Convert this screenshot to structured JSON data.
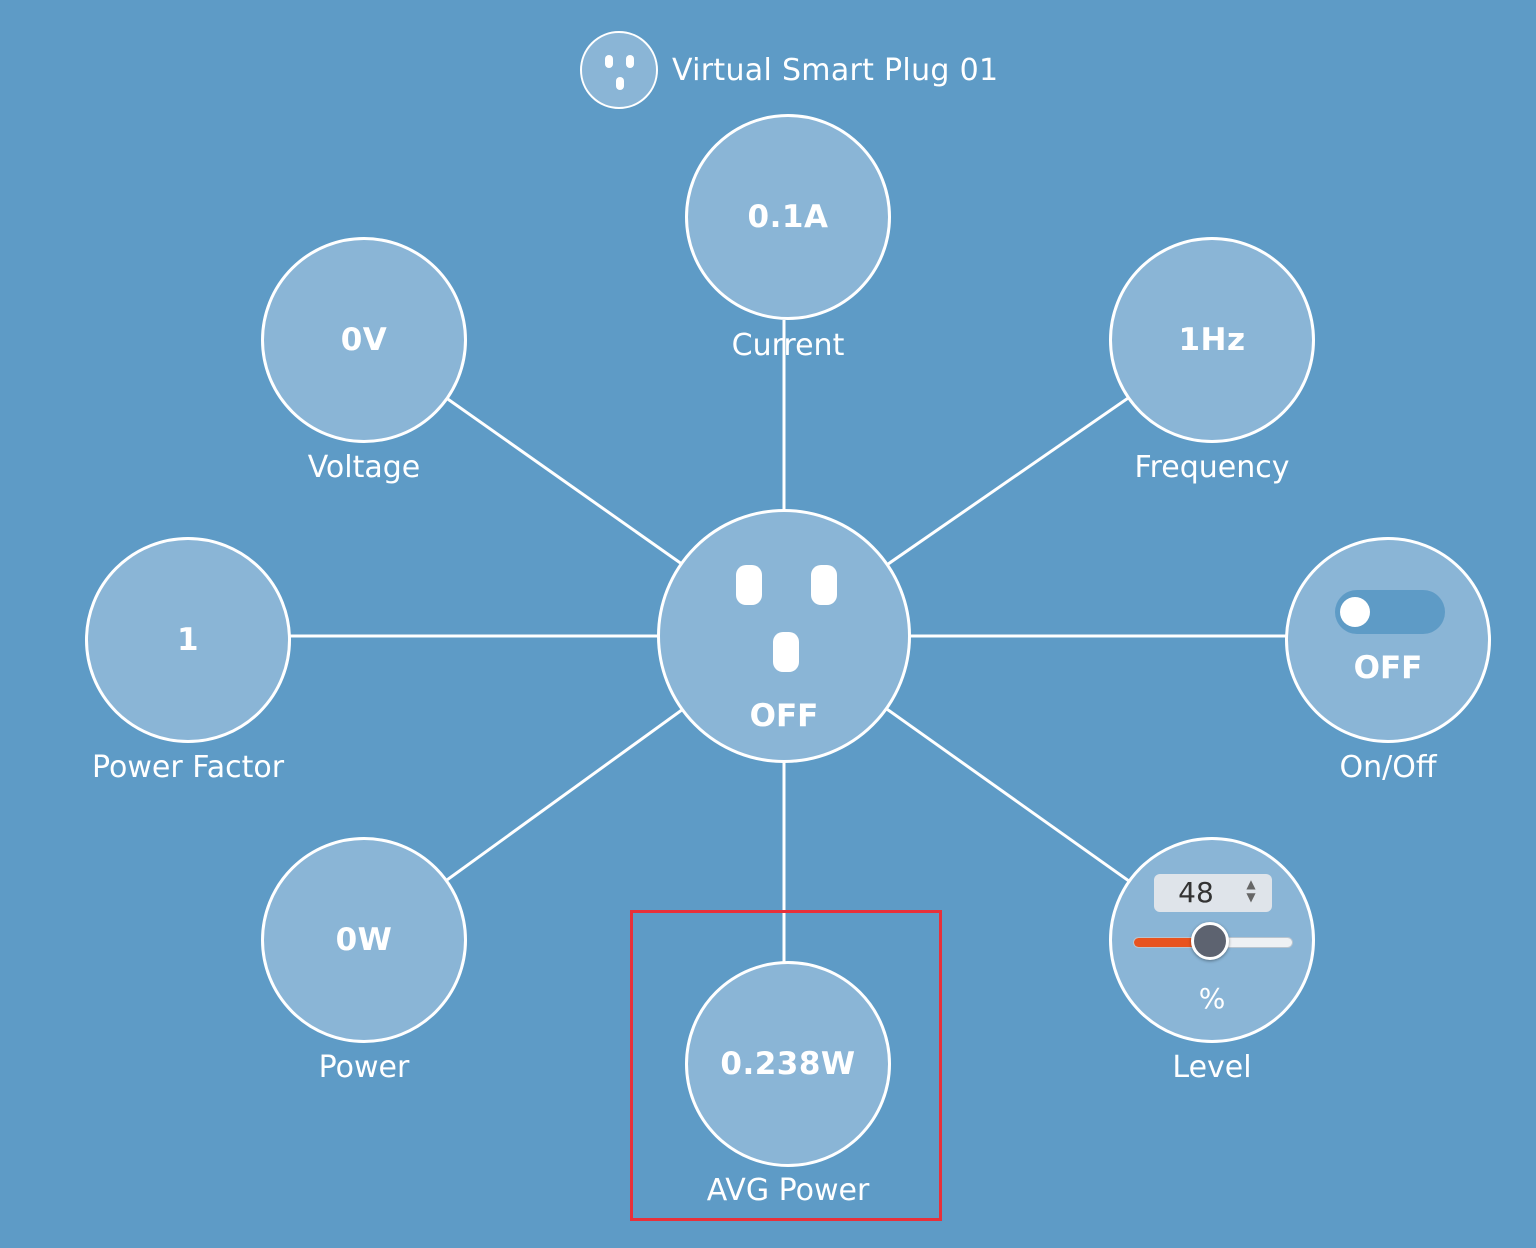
{
  "device": {
    "title": "Virtual Smart Plug 01",
    "state": "OFF"
  },
  "nodes": {
    "current": {
      "value": "0.1A",
      "label": "Current"
    },
    "voltage": {
      "value": "0V",
      "label": "Voltage"
    },
    "frequency": {
      "value": "1Hz",
      "label": "Frequency"
    },
    "power_factor": {
      "value": "1",
      "label": "Power Factor"
    },
    "on_off": {
      "state": "OFF",
      "label": "On/Off",
      "toggle_on": false
    },
    "power": {
      "value": "0W",
      "label": "Power"
    },
    "avg_power": {
      "value": "0.238W",
      "label": "AVG Power"
    },
    "level": {
      "value": "48",
      "unit": "%",
      "label": "Level",
      "slider_fraction": 0.48
    }
  },
  "colors": {
    "background": "#5e9bc6",
    "node_fill": "#8ab5d6",
    "slider_fill": "#e8531f",
    "highlight": "#e8303a"
  }
}
